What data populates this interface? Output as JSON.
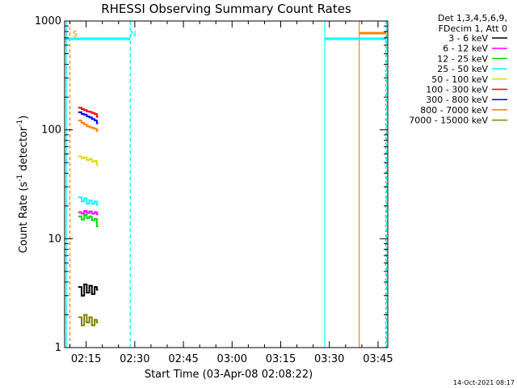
{
  "chart_data": {
    "type": "line",
    "title": "RHESSI Observing Summary Count Rates",
    "xlabel": "Start Time (03-Apr-08 02:08:22)",
    "ylabel_main": "Count Rate (s",
    "ylabel_sup1": "-1",
    "ylabel_mid": " detector",
    "ylabel_sup2": "-1",
    "ylabel_end": ")",
    "y_scale": "log",
    "ylim": [
      1,
      1000
    ],
    "xlim_minutes_after_0200": [
      8.37,
      108.0
    ],
    "y_ticks": [
      {
        "value": 1,
        "label": "1"
      },
      {
        "value": 10,
        "label": "10"
      },
      {
        "value": 100,
        "label": "100"
      },
      {
        "value": 1000,
        "label": "1000"
      }
    ],
    "x_ticks": [
      {
        "minute": 15,
        "label": "02:15"
      },
      {
        "minute": 30,
        "label": "02:30"
      },
      {
        "minute": 45,
        "label": "02:45"
      },
      {
        "minute": 60,
        "label": "03:00"
      },
      {
        "minute": 75,
        "label": "03:15"
      },
      {
        "minute": 90,
        "label": "03:30"
      },
      {
        "minute": 105,
        "label": "03:45"
      }
    ],
    "legend_header": [
      "Det 1,3,4,5,6,9,",
      "FDecim 1, Att 0"
    ],
    "legend_position": "right",
    "series": [
      {
        "name": "3 - 6 keV",
        "color": "#000000",
        "x": [
          12.8,
          13.6,
          14.4,
          15.2,
          16.0,
          16.8,
          17.6,
          18.3
        ],
        "y": [
          3.6,
          3.0,
          3.8,
          3.2,
          3.7,
          3.1,
          3.6,
          3.4
        ]
      },
      {
        "name": "6 - 12 keV",
        "color": "#ff00ff",
        "x": [
          12.8,
          13.6,
          14.4,
          15.2,
          16.0,
          16.8,
          17.6,
          18.3
        ],
        "y": [
          17.5,
          17.0,
          18.0,
          17.2,
          17.8,
          17.0,
          17.5,
          16.8
        ]
      },
      {
        "name": "12 - 25 keV",
        "color": "#00dd00",
        "x": [
          12.8,
          13.6,
          14.4,
          15.2,
          16.0,
          16.8,
          17.6,
          18.3
        ],
        "y": [
          16.0,
          15.0,
          16.5,
          15.5,
          16.0,
          14.8,
          15.2,
          13.0
        ]
      },
      {
        "name": "25 - 50 keV",
        "color": "#00ffff",
        "x": [
          12.8,
          13.6,
          14.4,
          15.2,
          16.0,
          16.8,
          17.6,
          18.3
        ],
        "y": [
          24.0,
          22.0,
          23.5,
          21.0,
          22.5,
          21.0,
          22.0,
          20.5
        ]
      },
      {
        "name": "50 - 100 keV",
        "color": "#dddd00",
        "x": [
          12.8,
          13.6,
          14.4,
          15.2,
          16.0,
          16.8,
          17.6,
          18.3
        ],
        "y": [
          57.0,
          55.0,
          56.0,
          53.0,
          54.0,
          51.0,
          52.0,
          48.0
        ]
      },
      {
        "name": "100 - 300 keV",
        "color": "#ff0000",
        "x": [
          12.8,
          13.6,
          14.4,
          15.2,
          16.0,
          16.8,
          17.6,
          18.3
        ],
        "y": [
          160.0,
          155.0,
          152.0,
          148.0,
          146.0,
          143.0,
          140.0,
          132.0
        ]
      },
      {
        "name": "300 - 800 keV",
        "color": "#0000ff",
        "x": [
          12.8,
          13.6,
          14.4,
          15.2,
          16.0,
          16.8,
          17.6,
          18.3
        ],
        "y": [
          145.0,
          140.0,
          138.0,
          133.0,
          130.0,
          126.0,
          122.0,
          115.0
        ]
      },
      {
        "name": "800 - 7000 keV",
        "color": "#ff8000",
        "x": [
          12.8,
          13.6,
          14.4,
          15.2,
          16.0,
          16.8,
          17.6,
          18.3
        ],
        "y": [
          122.0,
          116.0,
          112.0,
          108.0,
          106.0,
          104.0,
          102.0,
          98.0
        ]
      },
      {
        "name": "7000 - 15000 keV",
        "color": "#808000",
        "x": [
          12.8,
          13.6,
          14.4,
          15.2,
          16.0,
          16.8,
          17.6,
          18.3
        ],
        "y": [
          1.9,
          1.6,
          2.0,
          1.7,
          1.9,
          1.6,
          1.8,
          1.7
        ]
      }
    ],
    "annotations": [
      {
        "text": "S",
        "minute": 10.8,
        "color": "#ff8000"
      },
      {
        "text": "N",
        "minute": 28.6,
        "color": "#00ffff"
      }
    ],
    "timestamp": "14-Oct-2021 08:17"
  }
}
